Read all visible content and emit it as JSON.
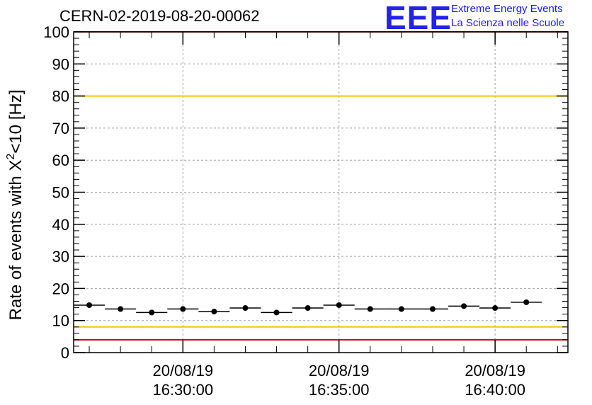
{
  "header": {
    "run_title": "CERN-02-2019-08-20-00062",
    "logo_mark": "EEE",
    "logo_line1": "Extreme Energy Events",
    "logo_line2": "La Scienza nelle Scuole"
  },
  "chart_data": {
    "type": "scatter",
    "ylabel_main": "Rate of events with X",
    "ylabel_sup": "2",
    "ylabel_tail": "<10 [Hz]",
    "ylim": [
      0,
      100
    ],
    "yticks": [
      0,
      10,
      20,
      30,
      40,
      50,
      60,
      70,
      80,
      90,
      100
    ],
    "xlim": [
      "2019-08-20T16:26:30",
      "2019-08-20T16:42:20"
    ],
    "xticks": [
      {
        "date": "20/08/19",
        "time": "16:30:00",
        "t": "2019-08-20T16:30:00"
      },
      {
        "date": "20/08/19",
        "time": "16:35:00",
        "t": "2019-08-20T16:35:00"
      },
      {
        "date": "20/08/19",
        "time": "16:40:00",
        "t": "2019-08-20T16:40:00"
      }
    ],
    "grid": true,
    "bin_width_seconds": 60,
    "points": [
      {
        "t": "2019-08-20T16:27:00",
        "y": 14.8
      },
      {
        "t": "2019-08-20T16:28:00",
        "y": 13.6
      },
      {
        "t": "2019-08-20T16:29:00",
        "y": 12.5
      },
      {
        "t": "2019-08-20T16:30:00",
        "y": 13.6
      },
      {
        "t": "2019-08-20T16:31:00",
        "y": 12.8
      },
      {
        "t": "2019-08-20T16:32:00",
        "y": 13.9
      },
      {
        "t": "2019-08-20T16:33:00",
        "y": 12.5
      },
      {
        "t": "2019-08-20T16:34:00",
        "y": 13.9
      },
      {
        "t": "2019-08-20T16:35:00",
        "y": 14.8
      },
      {
        "t": "2019-08-20T16:36:00",
        "y": 13.6
      },
      {
        "t": "2019-08-20T16:37:00",
        "y": 13.6
      },
      {
        "t": "2019-08-20T16:38:00",
        "y": 13.6
      },
      {
        "t": "2019-08-20T16:39:00",
        "y": 14.5
      },
      {
        "t": "2019-08-20T16:40:00",
        "y": 13.9
      },
      {
        "t": "2019-08-20T16:41:00",
        "y": 15.7
      }
    ],
    "reference_lines": [
      {
        "y": 100,
        "color": "#e00000"
      },
      {
        "y": 80,
        "color": "#f0c800"
      },
      {
        "y": 8,
        "color": "#f0c800"
      },
      {
        "y": 4,
        "color": "#e00000"
      }
    ]
  }
}
